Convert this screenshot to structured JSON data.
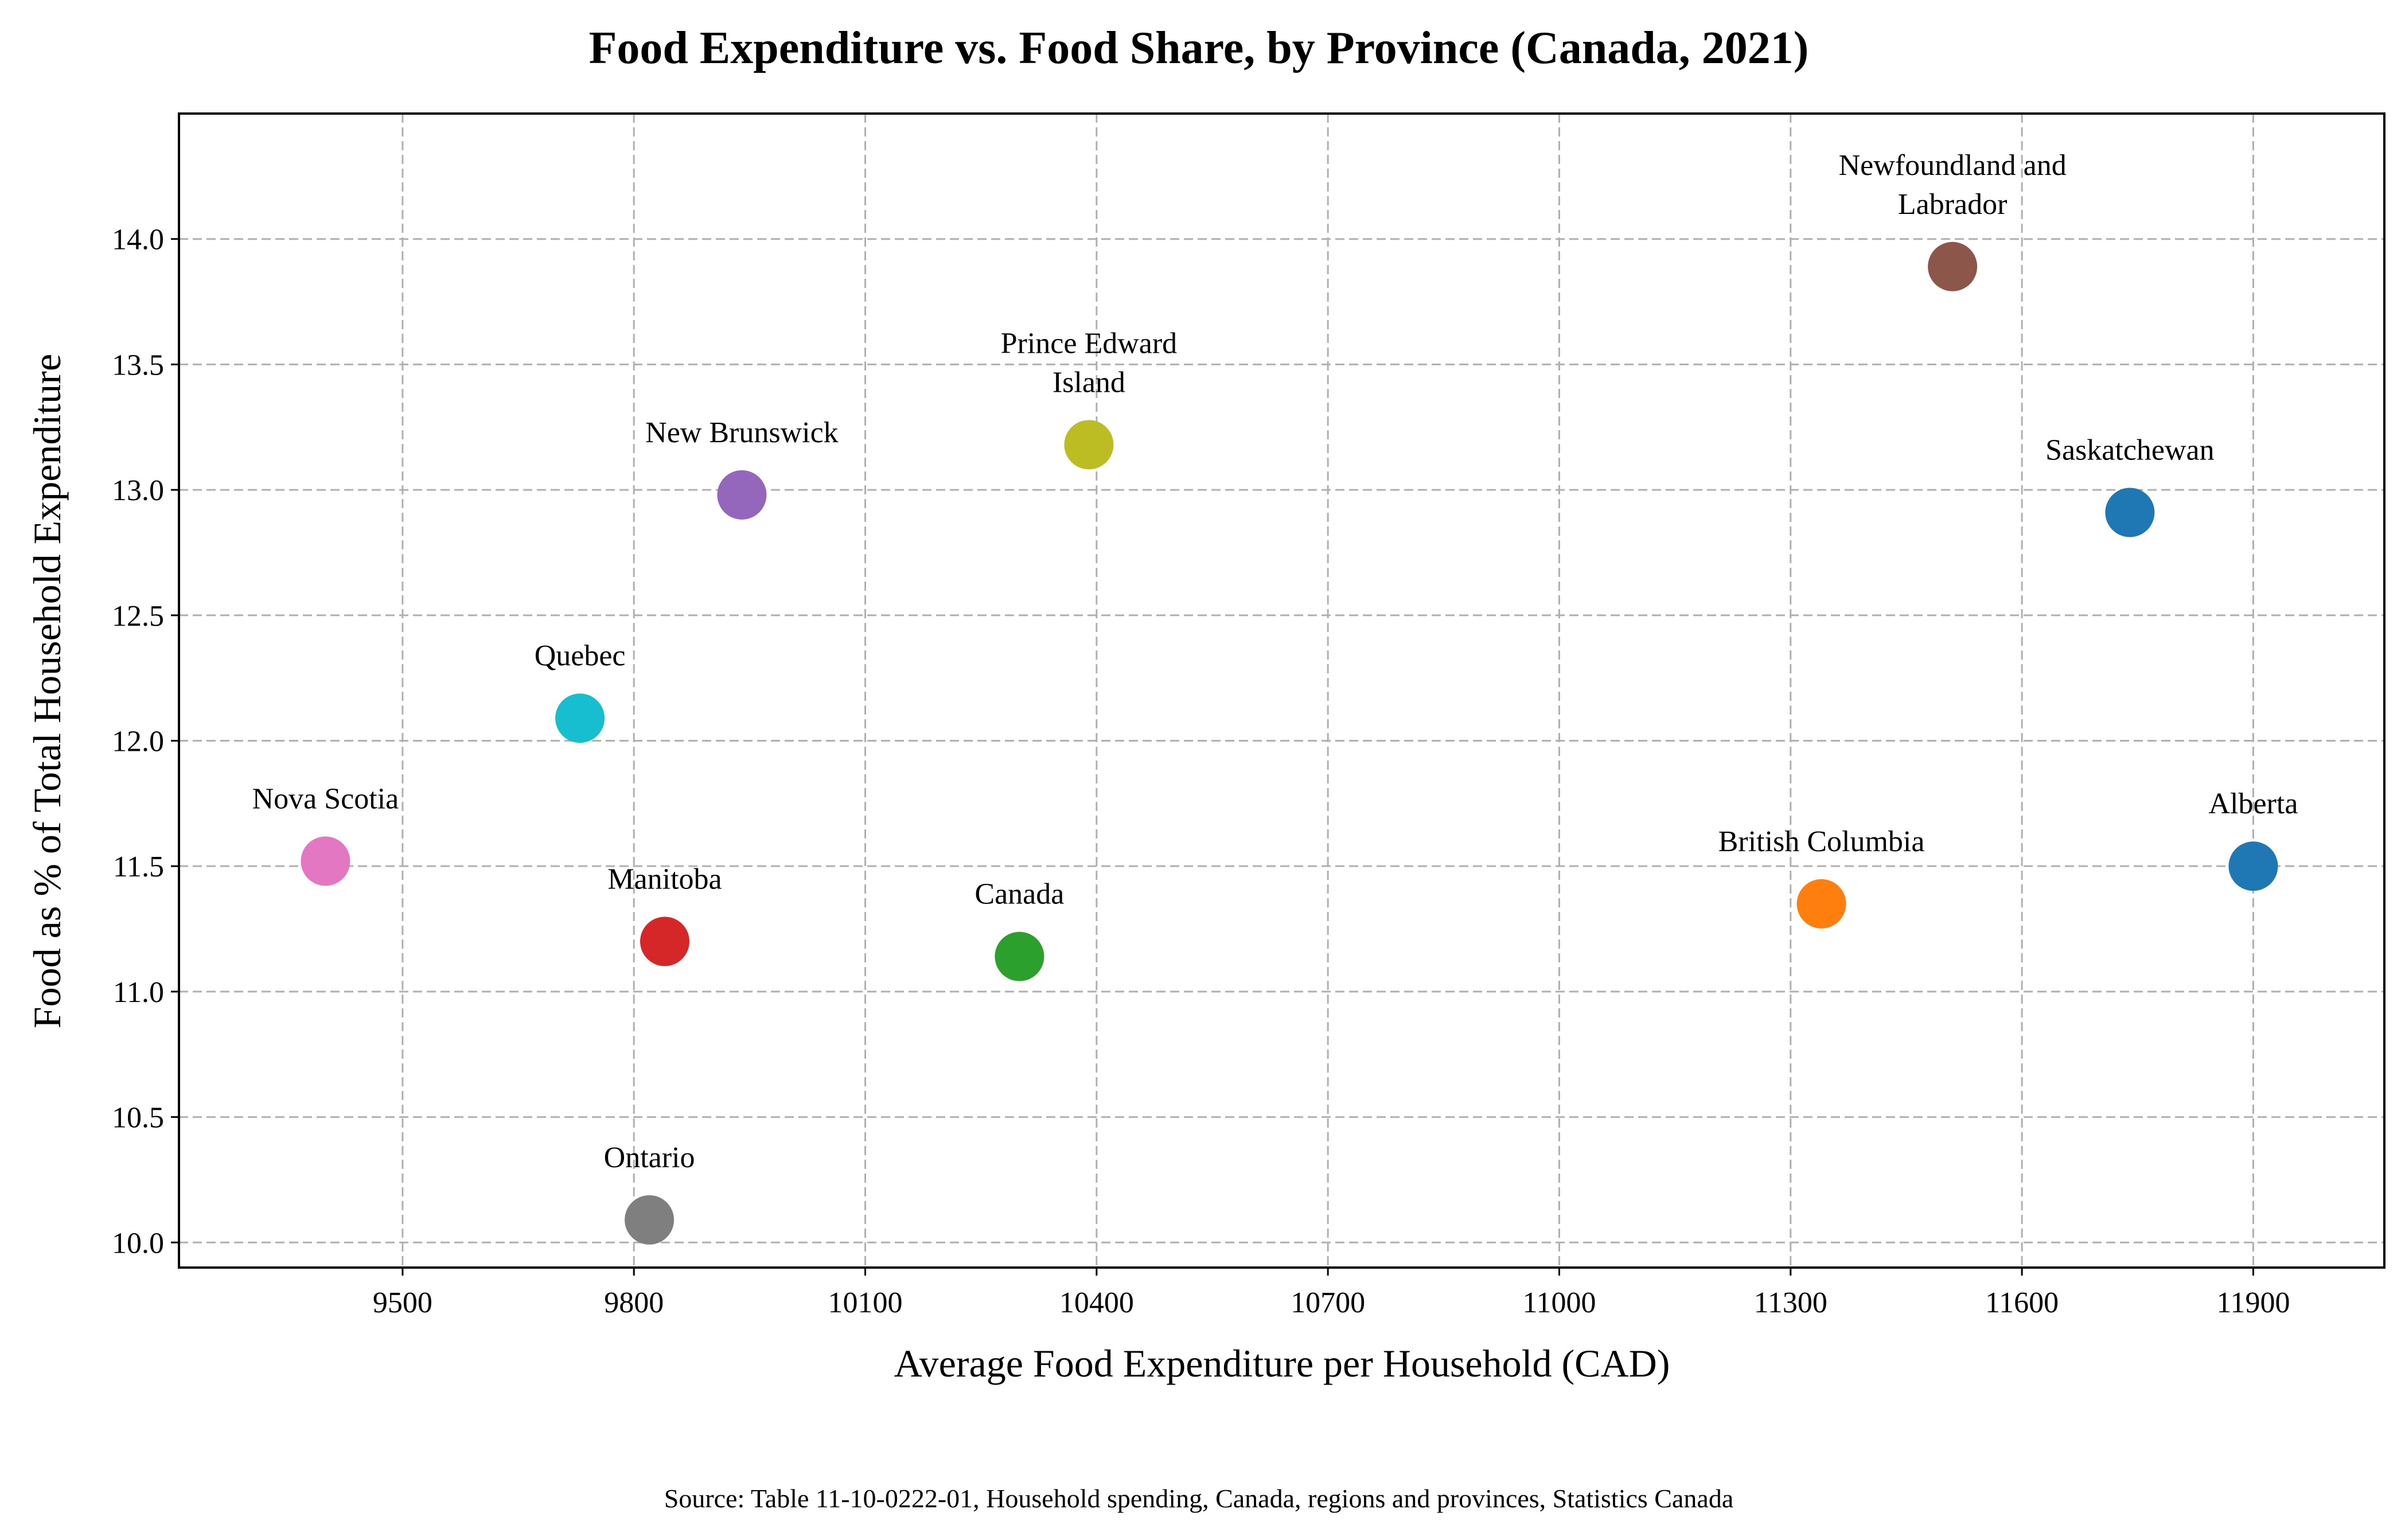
{
  "chart_data": {
    "type": "scatter",
    "title": "Food Expenditure vs. Food Share, by Province (Canada, 2021)",
    "xlabel": "Average Food Expenditure per Household (CAD)",
    "ylabel": "Food as % of Total Household Expenditure",
    "source": "Source: Table 11-10-0222-01, Household spending, Canada, regions and provinces, Statistics Canada",
    "xlim": [
      9210,
      12070
    ],
    "ylim": [
      9.9,
      14.5
    ],
    "xticks": [
      9500,
      9800,
      10100,
      10400,
      10700,
      11000,
      11300,
      11600,
      11900
    ],
    "yticks": [
      10.0,
      10.5,
      11.0,
      11.5,
      12.0,
      12.5,
      13.0,
      13.5,
      14.0
    ],
    "grid": true,
    "points": [
      {
        "label": "Nova Scotia",
        "label_lines": [
          "Nova Scotia"
        ],
        "x": 9400,
        "y": 11.52,
        "color": "#e377c2"
      },
      {
        "label": "Quebec",
        "label_lines": [
          "Quebec"
        ],
        "x": 9730,
        "y": 12.09,
        "color": "#17becf"
      },
      {
        "label": "Ontario",
        "label_lines": [
          "Ontario"
        ],
        "x": 9820,
        "y": 10.09,
        "color": "#7f7f7f"
      },
      {
        "label": "Manitoba",
        "label_lines": [
          "Manitoba"
        ],
        "x": 9840,
        "y": 11.2,
        "color": "#d62728"
      },
      {
        "label": "New Brunswick",
        "label_lines": [
          "New Brunswick"
        ],
        "x": 9940,
        "y": 12.98,
        "color": "#9467bd"
      },
      {
        "label": "Canada",
        "label_lines": [
          "Canada"
        ],
        "x": 10300,
        "y": 11.14,
        "color": "#2ca02c"
      },
      {
        "label": "Prince Edward Island",
        "label_lines": [
          "Prince Edward",
          "Island"
        ],
        "x": 10390,
        "y": 13.18,
        "color": "#bcbd22"
      },
      {
        "label": "British Columbia",
        "label_lines": [
          "British Columbia"
        ],
        "x": 11340,
        "y": 11.35,
        "color": "#ff7f0e"
      },
      {
        "label": "Newfoundland and Labrador",
        "label_lines": [
          "Newfoundland and",
          "Labrador"
        ],
        "x": 11510,
        "y": 13.89,
        "color": "#8c564b"
      },
      {
        "label": "Saskatchewan",
        "label_lines": [
          "Saskatchewan"
        ],
        "x": 11740,
        "y": 12.91,
        "color": "#1f77b4"
      },
      {
        "label": "Alberta",
        "label_lines": [
          "Alberta"
        ],
        "x": 11900,
        "y": 11.5,
        "color": "#1f77b4"
      }
    ]
  }
}
